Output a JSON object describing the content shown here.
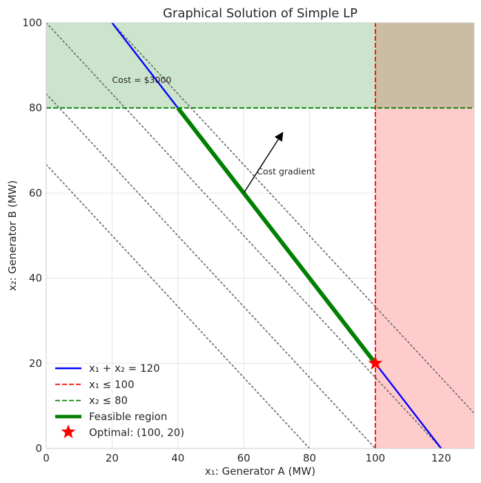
{
  "chart_data": {
    "type": "line",
    "title": "Graphical Solution of Simple LP",
    "xlabel": "x₁: Generator A (MW)",
    "ylabel": "x₂: Generator B (MW)",
    "xlim": [
      0,
      130
    ],
    "ylim": [
      0,
      100
    ],
    "xticks": [
      0,
      20,
      40,
      60,
      80,
      100,
      120
    ],
    "yticks": [
      0,
      20,
      40,
      60,
      80,
      100
    ],
    "grid": true,
    "legend_position": "lower-left",
    "shaded_regions": [
      {
        "name": "x₂ > 80 infeasible",
        "x": [
          0,
          130
        ],
        "y": [
          80,
          100
        ],
        "color": "#cce4cc"
      },
      {
        "name": "x₁ > 100 infeasible",
        "x": [
          100,
          130
        ],
        "y": [
          0,
          100
        ],
        "color": "#ffcccc"
      },
      {
        "name": "overlap",
        "x": [
          100,
          130
        ],
        "y": [
          80,
          100
        ],
        "color": "#cdbca4"
      }
    ],
    "series": [
      {
        "name": "x₁ + x₂ = 120",
        "style": "solid",
        "color": "#0000ff",
        "x": [
          20,
          120
        ],
        "y": [
          100,
          0
        ]
      },
      {
        "name": "x₁ ≤ 100",
        "style": "dashed",
        "color": "#ff0000",
        "x": [
          100,
          100
        ],
        "y": [
          0,
          100
        ]
      },
      {
        "name": "x₂ ≤ 80",
        "style": "dashed",
        "color": "#008000",
        "x": [
          0,
          130
        ],
        "y": [
          80,
          80
        ]
      },
      {
        "name": "Feasible region",
        "style": "solid-thick",
        "color": "#008000",
        "x": [
          40,
          100
        ],
        "y": [
          80,
          20
        ]
      },
      {
        "name": "Optimal: (100, 20)",
        "style": "star-marker",
        "color": "#ff0000",
        "x": [
          100
        ],
        "y": [
          20
        ]
      }
    ],
    "iso_cost_lines": [
      {
        "x0": 0,
        "y0": 66.7,
        "x1": 80,
        "y1": 0
      },
      {
        "x0": 0,
        "y0": 83.3,
        "x1": 100,
        "y1": 0
      },
      {
        "x0": 0,
        "y0": 100,
        "x1": 120,
        "y1": 0
      },
      {
        "x0": 20,
        "y0": 100,
        "x1": 130,
        "y1": 8.3
      }
    ],
    "annotations": [
      {
        "text": "Cost = $3000",
        "x": 20,
        "y": 86.5
      },
      {
        "text": "Cost gradient",
        "x": 64,
        "y": 65
      }
    ],
    "arrow": {
      "from": [
        60,
        60
      ],
      "to": [
        72,
        74.4
      ]
    }
  }
}
